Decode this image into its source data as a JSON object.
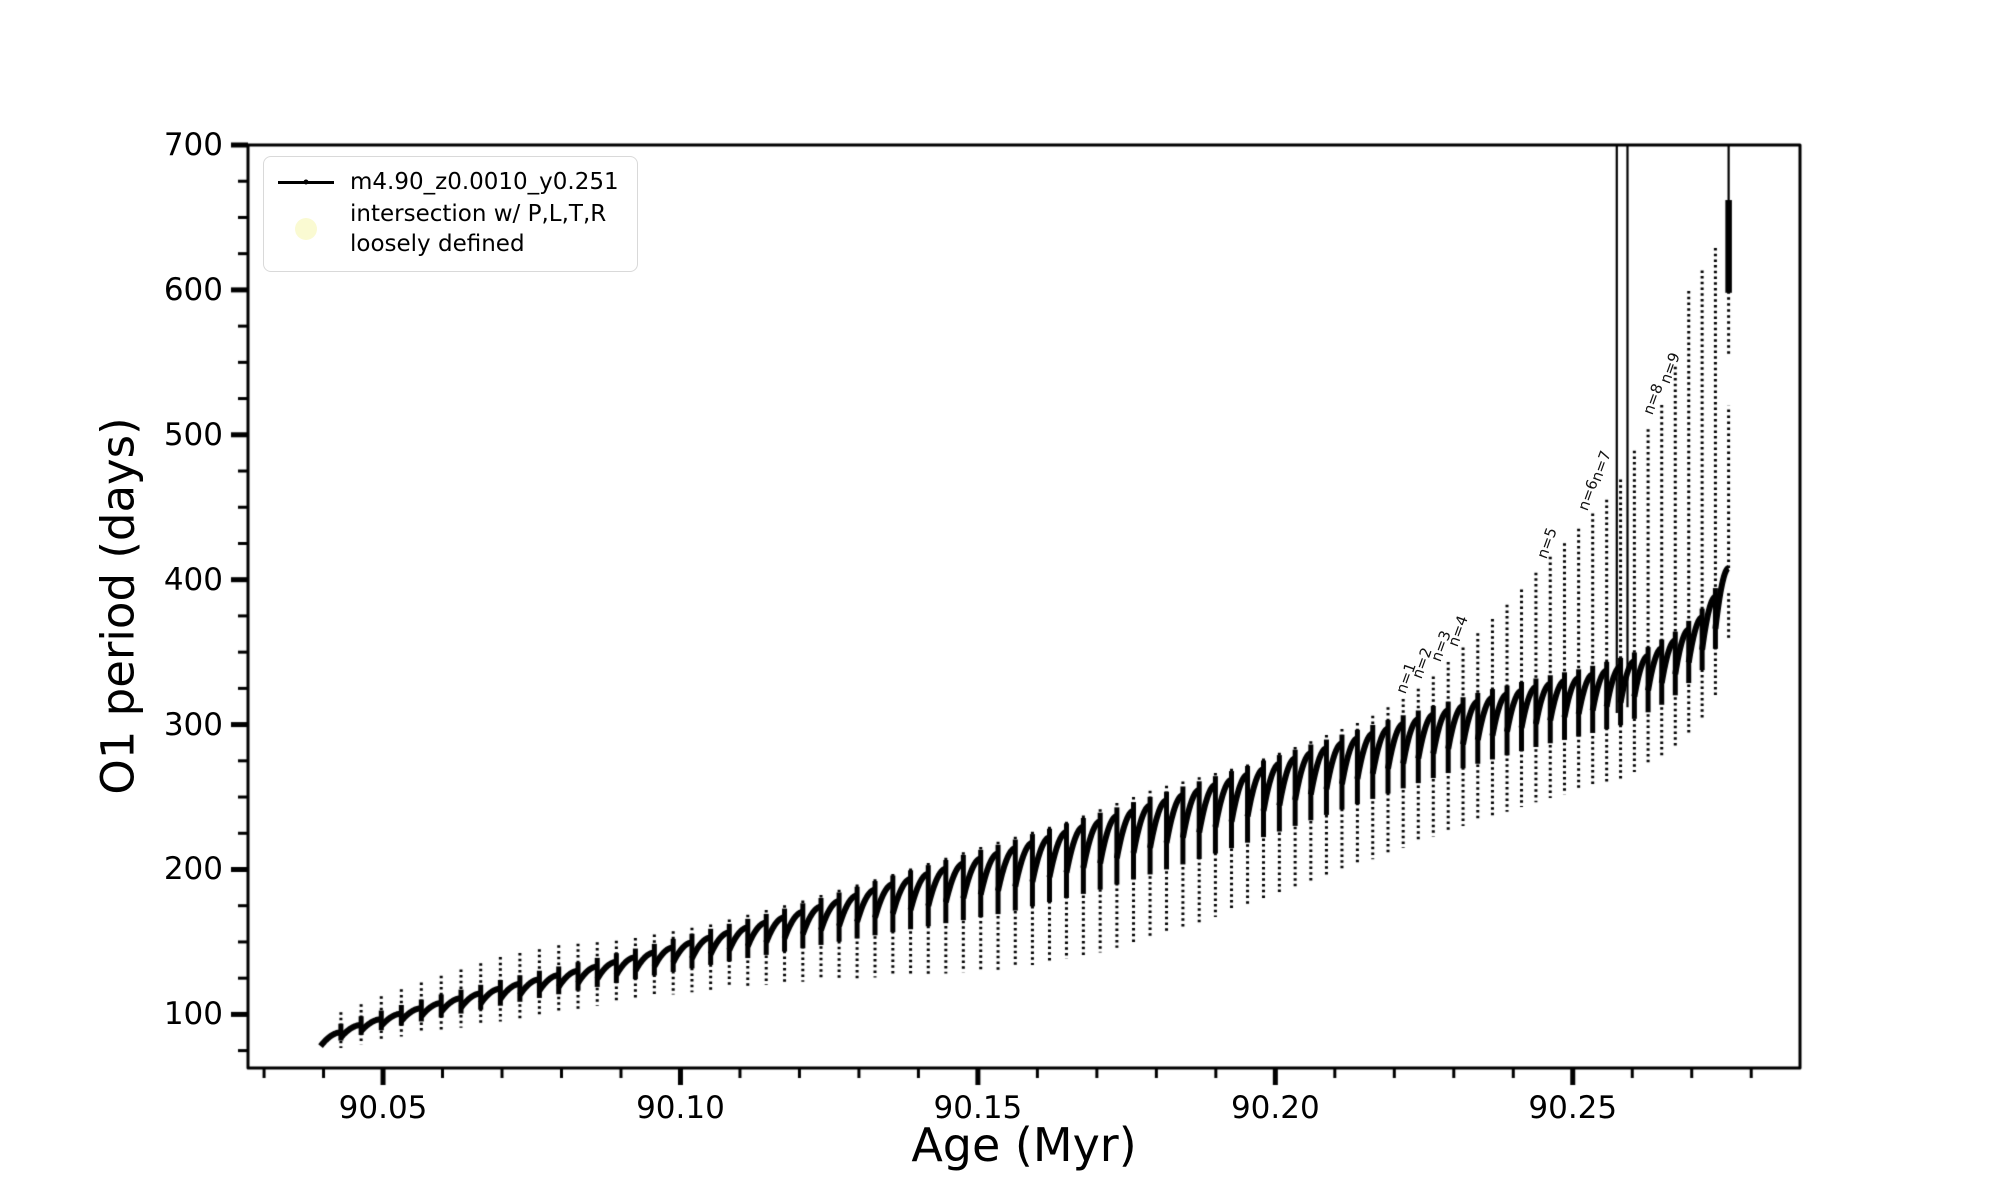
{
  "figure": {
    "background": "#ffffff",
    "line_color": "#000000",
    "intersection_marker_color": "#fafad2"
  },
  "axes": {
    "xlabel": "Age (Myr)",
    "ylabel": "O1 period (days)"
  },
  "legend": {
    "series_label": "m4.90_z0.0010_y0.251",
    "intersection_label_line1": "intersection w/ P,L,T,R",
    "intersection_label_line2": "loosely defined"
  },
  "chart_data": {
    "type": "line",
    "title": "",
    "xlabel": "Age (Myr)",
    "ylabel": "O1 period (days)",
    "xlim": [
      90.0273,
      90.2882
    ],
    "ylim": [
      63,
      700
    ],
    "grid": false,
    "x_major_ticks": [
      90.05,
      90.1,
      90.15,
      90.2,
      90.25
    ],
    "x_tick_labels": [
      "90.05",
      "90.10",
      "90.15",
      "90.20",
      "90.25"
    ],
    "x_minor_step": 0.01,
    "y_major_ticks": [
      100,
      200,
      300,
      400,
      500,
      600,
      700
    ],
    "y_tick_labels": [
      "100",
      "200",
      "300",
      "400",
      "500",
      "600",
      "700"
    ],
    "y_minor_step": 25,
    "legend_position": "upper left",
    "series": [
      {
        "name": "m4.90_z0.0010_y0.251",
        "color": "#000000",
        "style": "line with dot markers, quasi-periodic sawtooth pulses",
        "sawtooth": {
          "age_start": 90.0395,
          "age_end": 90.2762,
          "n_teeth": 84,
          "taper": 0.35,
          "baseline": [
            [
              90.0395,
              80
            ],
            [
              90.044,
              90
            ],
            [
              90.05,
              97
            ],
            [
              90.058,
              106
            ],
            [
              90.066,
              114
            ],
            [
              90.075,
              123
            ],
            [
              90.085,
              132
            ],
            [
              90.095,
              142
            ],
            [
              90.105,
              153
            ],
            [
              90.115,
              164
            ],
            [
              90.125,
              176
            ],
            [
              90.135,
              189
            ],
            [
              90.145,
              201
            ],
            [
              90.155,
              213
            ],
            [
              90.165,
              226
            ],
            [
              90.175,
              239
            ],
            [
              90.185,
              252
            ],
            [
              90.195,
              265
            ],
            [
              90.205,
              279
            ],
            [
              90.215,
              292
            ],
            [
              90.225,
              305
            ],
            [
              90.235,
              317
            ],
            [
              90.245,
              327
            ],
            [
              90.252,
              333
            ],
            [
              90.258,
              340
            ],
            [
              90.263,
              348
            ],
            [
              90.268,
              360
            ],
            [
              90.272,
              375
            ],
            [
              90.275,
              395
            ],
            [
              90.2762,
              408
            ]
          ],
          "up_envelope": [
            [
              90.0395,
              96
            ],
            [
              90.05,
              113
            ],
            [
              90.06,
              127
            ],
            [
              90.07,
              140
            ],
            [
              90.08,
              148
            ],
            [
              90.09,
              151
            ],
            [
              90.105,
              162
            ],
            [
              90.12,
              178
            ],
            [
              90.135,
              196
            ],
            [
              90.15,
              215
            ],
            [
              90.165,
              233
            ],
            [
              90.18,
              256
            ],
            [
              90.195,
              272
            ],
            [
              90.205,
              287
            ],
            [
              90.215,
              303
            ],
            [
              90.2225,
              320
            ],
            [
              90.226,
              331
            ],
            [
              90.23,
              347
            ],
            [
              90.2353,
              368
            ],
            [
              90.2405,
              389
            ],
            [
              90.2455,
              413
            ],
            [
              90.2501,
              431
            ],
            [
              90.2527,
              443
            ],
            [
              90.2574,
              462
            ],
            [
              90.2592,
              482
            ],
            [
              90.2615,
              496
            ],
            [
              90.264,
              513
            ],
            [
              90.2668,
              535
            ],
            [
              90.269,
              596
            ],
            [
              90.2715,
              612
            ],
            [
              90.2737,
              625
            ],
            [
              90.2762,
              660
            ]
          ],
          "down_envelope": [
            [
              90.0395,
              74
            ],
            [
              90.052,
              84
            ],
            [
              90.065,
              92
            ],
            [
              90.08,
              102
            ],
            [
              90.095,
              112
            ],
            [
              90.11,
              119
            ],
            [
              90.125,
              124
            ],
            [
              90.14,
              127
            ],
            [
              90.155,
              131
            ],
            [
              90.17,
              142
            ],
            [
              90.185,
              160
            ],
            [
              90.2,
              182
            ],
            [
              90.215,
              205
            ],
            [
              90.23,
              228
            ],
            [
              90.245,
              248
            ],
            [
              90.258,
              262
            ],
            [
              90.266,
              280
            ],
            [
              90.272,
              305
            ],
            [
              90.2762,
              335
            ]
          ]
        }
      },
      {
        "name": "intersection w/ P,L,T,R loosely defined",
        "color": "#fafad2",
        "style": "scatter (large pale-yellow circle marker, not visible on track)",
        "points": []
      }
    ],
    "clipped_spikes": [
      {
        "age": 90.2574,
        "top": 700,
        "bottom": 308
      },
      {
        "age": 90.2592,
        "top": 700,
        "bottom": 312
      }
    ],
    "final_spike": {
      "age": 90.2762,
      "segments": [
        {
          "from": 360,
          "to": 392,
          "style": "dash"
        },
        {
          "from": 408,
          "to": 520,
          "style": "dash"
        },
        {
          "from": 556,
          "to": 600,
          "style": "dash"
        },
        {
          "from": 598,
          "to": 662,
          "style": "blob"
        },
        {
          "from": 600,
          "to": 700,
          "style": "solid"
        }
      ]
    },
    "annotations": [
      {
        "label": "n=1",
        "age": 90.2225,
        "period": 320
      },
      {
        "label": "n=2",
        "age": 90.2252,
        "period": 330
      },
      {
        "label": "n=3",
        "age": 90.2283,
        "period": 342
      },
      {
        "label": "n=4",
        "age": 90.2312,
        "period": 352
      },
      {
        "label": "n=5",
        "age": 90.2462,
        "period": 413
      },
      {
        "label": "n=6",
        "age": 90.253,
        "period": 446
      },
      {
        "label": "n=7",
        "age": 90.2553,
        "period": 466
      },
      {
        "label": "n=8",
        "age": 90.264,
        "period": 512
      },
      {
        "label": "n=9",
        "age": 90.2668,
        "period": 534
      }
    ]
  }
}
